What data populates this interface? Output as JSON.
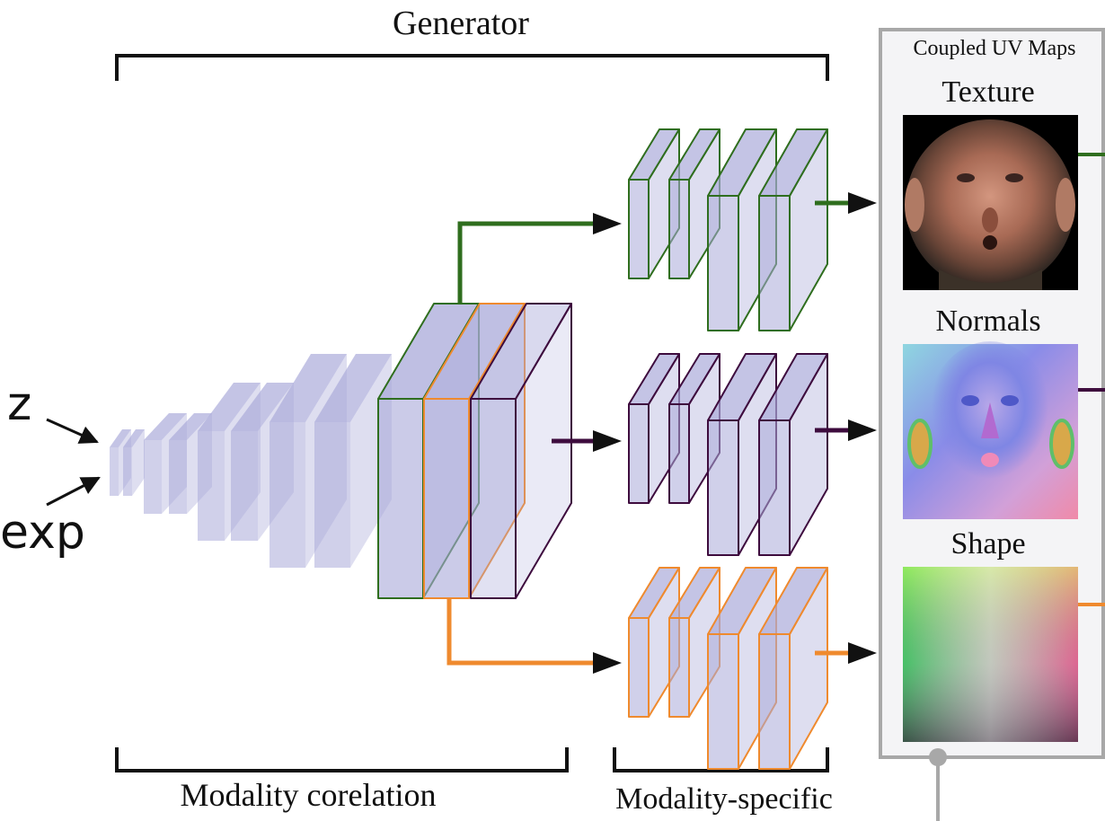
{
  "title": "Generator",
  "inputs": {
    "z_label": "z",
    "exp_label": "exp"
  },
  "sections": {
    "correlation_label": "Modality corelation",
    "specific_label": "Modality-specific"
  },
  "panel": {
    "title": "Coupled UV Maps",
    "maps": [
      {
        "label": "Texture",
        "color": "#2f6e1e"
      },
      {
        "label": "Normals",
        "color": "#3e0c3e"
      },
      {
        "label": "Shape",
        "color": "#ef8a2e"
      }
    ]
  },
  "colors": {
    "block_fill": "#a9a9d9",
    "green": "#2f6e1e",
    "purple": "#3e0c3e",
    "orange": "#ef8a2e",
    "bracket": "#111111",
    "panel_border": "#a8a8a8",
    "panel_fill": "#f4f4f6"
  }
}
